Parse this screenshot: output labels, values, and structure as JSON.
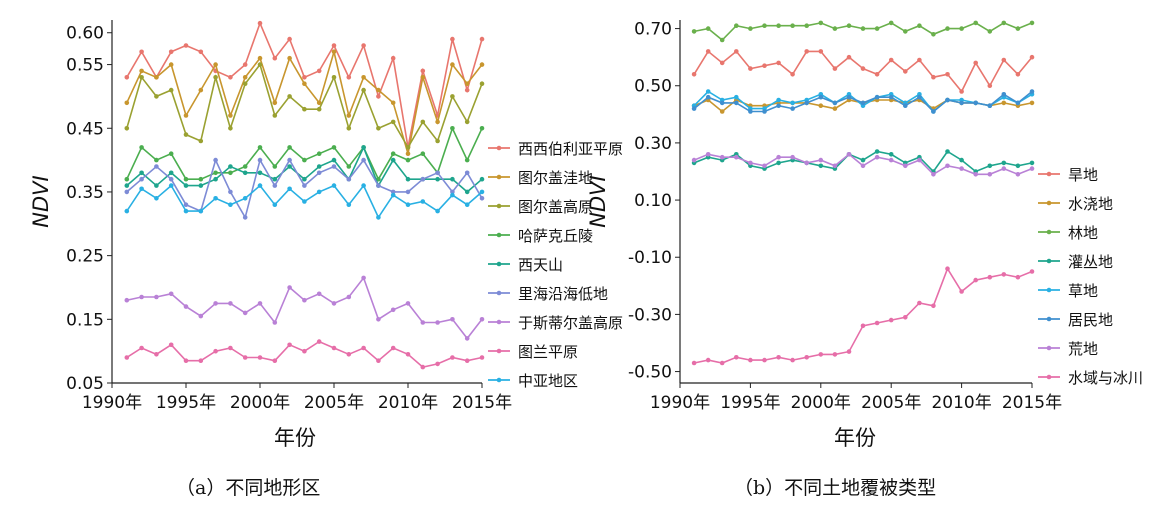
{
  "captions": {
    "a": "（a）不同地形区",
    "b": "（b）不同土地覆被类型"
  },
  "chart_data": [
    {
      "type": "line",
      "xlabel": "年份",
      "ylabel": "NDVI",
      "ylim": [
        0.05,
        0.62
      ],
      "yticks": [
        "0.05",
        "0.15",
        "0.25",
        "0.35",
        "0.45",
        "0.55",
        "0.60"
      ],
      "xticks": [
        "1990年",
        "1995年",
        "2000年",
        "2005年",
        "2010年",
        "2015年"
      ],
      "xlim": [
        1990,
        2015
      ],
      "grid": false,
      "legend_position": "right",
      "x": [
        1991,
        1992,
        1993,
        1994,
        1995,
        1996,
        1997,
        1998,
        1999,
        2000,
        2001,
        2002,
        2003,
        2004,
        2005,
        2006,
        2007,
        2008,
        2009,
        2010,
        2011,
        2012,
        2013,
        2014,
        2015
      ],
      "series": [
        {
          "name": "西西伯利亚平原",
          "color": "#e8766e",
          "values": [
            0.53,
            0.57,
            0.53,
            0.57,
            0.58,
            0.57,
            0.54,
            0.53,
            0.55,
            0.615,
            0.56,
            0.59,
            0.53,
            0.54,
            0.58,
            0.53,
            0.58,
            0.5,
            0.56,
            0.42,
            0.54,
            0.47,
            0.59,
            0.51,
            0.59
          ]
        },
        {
          "name": "图尔盖洼地",
          "color": "#c8962e",
          "values": [
            0.49,
            0.54,
            0.53,
            0.55,
            0.47,
            0.51,
            0.55,
            0.47,
            0.53,
            0.56,
            0.49,
            0.56,
            0.52,
            0.49,
            0.57,
            0.47,
            0.53,
            0.51,
            0.49,
            0.41,
            0.53,
            0.46,
            0.55,
            0.52,
            0.55
          ]
        },
        {
          "name": "图尔盖高原",
          "color": "#9aa131",
          "values": [
            0.45,
            0.53,
            0.5,
            0.51,
            0.44,
            0.43,
            0.53,
            0.45,
            0.52,
            0.55,
            0.47,
            0.5,
            0.48,
            0.48,
            0.53,
            0.45,
            0.51,
            0.45,
            0.46,
            0.42,
            0.46,
            0.43,
            0.5,
            0.46,
            0.52
          ]
        },
        {
          "name": "哈萨克丘陵",
          "color": "#4bae4f",
          "values": [
            0.37,
            0.42,
            0.4,
            0.41,
            0.37,
            0.37,
            0.38,
            0.38,
            0.39,
            0.42,
            0.39,
            0.42,
            0.4,
            0.41,
            0.42,
            0.39,
            0.42,
            0.37,
            0.41,
            0.4,
            0.41,
            0.38,
            0.45,
            0.4,
            0.45
          ]
        },
        {
          "name": "西天山",
          "color": "#1ea58d",
          "values": [
            0.36,
            0.38,
            0.36,
            0.38,
            0.36,
            0.36,
            0.37,
            0.39,
            0.38,
            0.38,
            0.37,
            0.39,
            0.37,
            0.39,
            0.4,
            0.37,
            0.42,
            0.36,
            0.4,
            0.37,
            0.37,
            0.37,
            0.37,
            0.35,
            0.37
          ]
        },
        {
          "name": "里海沿海低地",
          "color": "#7d8bd6",
          "values": [
            0.35,
            0.37,
            0.39,
            0.37,
            0.33,
            0.32,
            0.4,
            0.35,
            0.31,
            0.4,
            0.36,
            0.4,
            0.36,
            0.38,
            0.39,
            0.37,
            0.4,
            0.36,
            0.35,
            0.35,
            0.37,
            0.38,
            0.35,
            0.38,
            0.34
          ]
        },
        {
          "name": "于斯蒂尔盖高原",
          "color": "#b981d6",
          "values": [
            0.18,
            0.185,
            0.185,
            0.19,
            0.17,
            0.155,
            0.175,
            0.175,
            0.16,
            0.175,
            0.145,
            0.2,
            0.18,
            0.19,
            0.175,
            0.185,
            0.215,
            0.15,
            0.165,
            0.175,
            0.145,
            0.145,
            0.15,
            0.12,
            0.15
          ]
        },
        {
          "name": "图兰平原",
          "color": "#e66ea8",
          "values": [
            0.09,
            0.105,
            0.095,
            0.11,
            0.085,
            0.085,
            0.1,
            0.105,
            0.09,
            0.09,
            0.085,
            0.11,
            0.1,
            0.115,
            0.105,
            0.095,
            0.105,
            0.085,
            0.105,
            0.095,
            0.075,
            0.08,
            0.09,
            0.085,
            0.09
          ]
        },
        {
          "name": "中亚地区",
          "color": "#29b0e3",
          "values": [
            0.32,
            0.355,
            0.34,
            0.36,
            0.32,
            0.32,
            0.34,
            0.33,
            0.34,
            0.36,
            0.33,
            0.355,
            0.335,
            0.35,
            0.36,
            0.33,
            0.36,
            0.31,
            0.345,
            0.33,
            0.335,
            0.32,
            0.345,
            0.33,
            0.35
          ]
        }
      ]
    },
    {
      "type": "line",
      "xlabel": "年份",
      "ylabel": "NDVI",
      "ylim": [
        -0.54,
        0.73
      ],
      "yticks": [
        "-0.50",
        "-0.30",
        "-0.10",
        "0.10",
        "0.30",
        "0.50",
        "0.70"
      ],
      "xticks": [
        "1990年",
        "1995年",
        "2000年",
        "2005年",
        "2010年",
        "2015年"
      ],
      "xlim": [
        1990,
        2015
      ],
      "grid": false,
      "legend_position": "right",
      "x": [
        1991,
        1992,
        1993,
        1994,
        1995,
        1996,
        1997,
        1998,
        1999,
        2000,
        2001,
        2002,
        2003,
        2004,
        2005,
        2006,
        2007,
        2008,
        2009,
        2010,
        2011,
        2012,
        2013,
        2014,
        2015
      ],
      "series": [
        {
          "name": "旱地",
          "color": "#e8766e",
          "values": [
            0.54,
            0.62,
            0.58,
            0.62,
            0.56,
            0.57,
            0.58,
            0.54,
            0.62,
            0.62,
            0.56,
            0.6,
            0.56,
            0.54,
            0.59,
            0.55,
            0.59,
            0.53,
            0.54,
            0.48,
            0.58,
            0.5,
            0.59,
            0.54,
            0.6
          ]
        },
        {
          "name": "水浇地",
          "color": "#c8962e",
          "values": [
            0.43,
            0.45,
            0.41,
            0.45,
            0.43,
            0.43,
            0.44,
            0.44,
            0.44,
            0.43,
            0.42,
            0.45,
            0.44,
            0.45,
            0.45,
            0.44,
            0.45,
            0.42,
            0.45,
            0.44,
            0.44,
            0.43,
            0.44,
            0.43,
            0.44
          ]
        },
        {
          "name": "林地",
          "color": "#6ab04c",
          "values": [
            0.69,
            0.7,
            0.66,
            0.71,
            0.7,
            0.71,
            0.71,
            0.71,
            0.71,
            0.72,
            0.7,
            0.71,
            0.7,
            0.7,
            0.72,
            0.69,
            0.71,
            0.68,
            0.7,
            0.7,
            0.72,
            0.69,
            0.72,
            0.7,
            0.72
          ]
        },
        {
          "name": "灌丛地",
          "color": "#1ea58d",
          "values": [
            0.23,
            0.25,
            0.24,
            0.26,
            0.22,
            0.21,
            0.23,
            0.24,
            0.23,
            0.22,
            0.21,
            0.26,
            0.24,
            0.27,
            0.26,
            0.23,
            0.25,
            0.2,
            0.27,
            0.24,
            0.2,
            0.22,
            0.23,
            0.22,
            0.23
          ]
        },
        {
          "name": "草地",
          "color": "#29b0e3",
          "values": [
            0.43,
            0.48,
            0.45,
            0.46,
            0.42,
            0.42,
            0.45,
            0.44,
            0.45,
            0.47,
            0.44,
            0.47,
            0.43,
            0.46,
            0.47,
            0.44,
            0.47,
            0.41,
            0.45,
            0.45,
            0.44,
            0.43,
            0.46,
            0.44,
            0.47
          ]
        },
        {
          "name": "居民地",
          "color": "#3f8fcf",
          "values": [
            0.42,
            0.46,
            0.44,
            0.44,
            0.41,
            0.41,
            0.43,
            0.42,
            0.44,
            0.46,
            0.44,
            0.46,
            0.44,
            0.46,
            0.46,
            0.43,
            0.46,
            0.41,
            0.45,
            0.44,
            0.44,
            0.43,
            0.47,
            0.44,
            0.48
          ]
        },
        {
          "name": "荒地",
          "color": "#b981d6",
          "values": [
            0.24,
            0.26,
            0.25,
            0.25,
            0.23,
            0.22,
            0.25,
            0.25,
            0.23,
            0.24,
            0.22,
            0.26,
            0.22,
            0.25,
            0.24,
            0.22,
            0.24,
            0.19,
            0.22,
            0.21,
            0.19,
            0.19,
            0.21,
            0.19,
            0.21
          ]
        },
        {
          "name": "水域与冰川",
          "color": "#e66ea8",
          "values": [
            -0.47,
            -0.46,
            -0.47,
            -0.45,
            -0.46,
            -0.46,
            -0.45,
            -0.46,
            -0.45,
            -0.44,
            -0.44,
            -0.43,
            -0.34,
            -0.33,
            -0.32,
            -0.31,
            -0.26,
            -0.27,
            -0.14,
            -0.22,
            -0.18,
            -0.17,
            -0.16,
            -0.17,
            -0.15
          ]
        }
      ]
    }
  ]
}
